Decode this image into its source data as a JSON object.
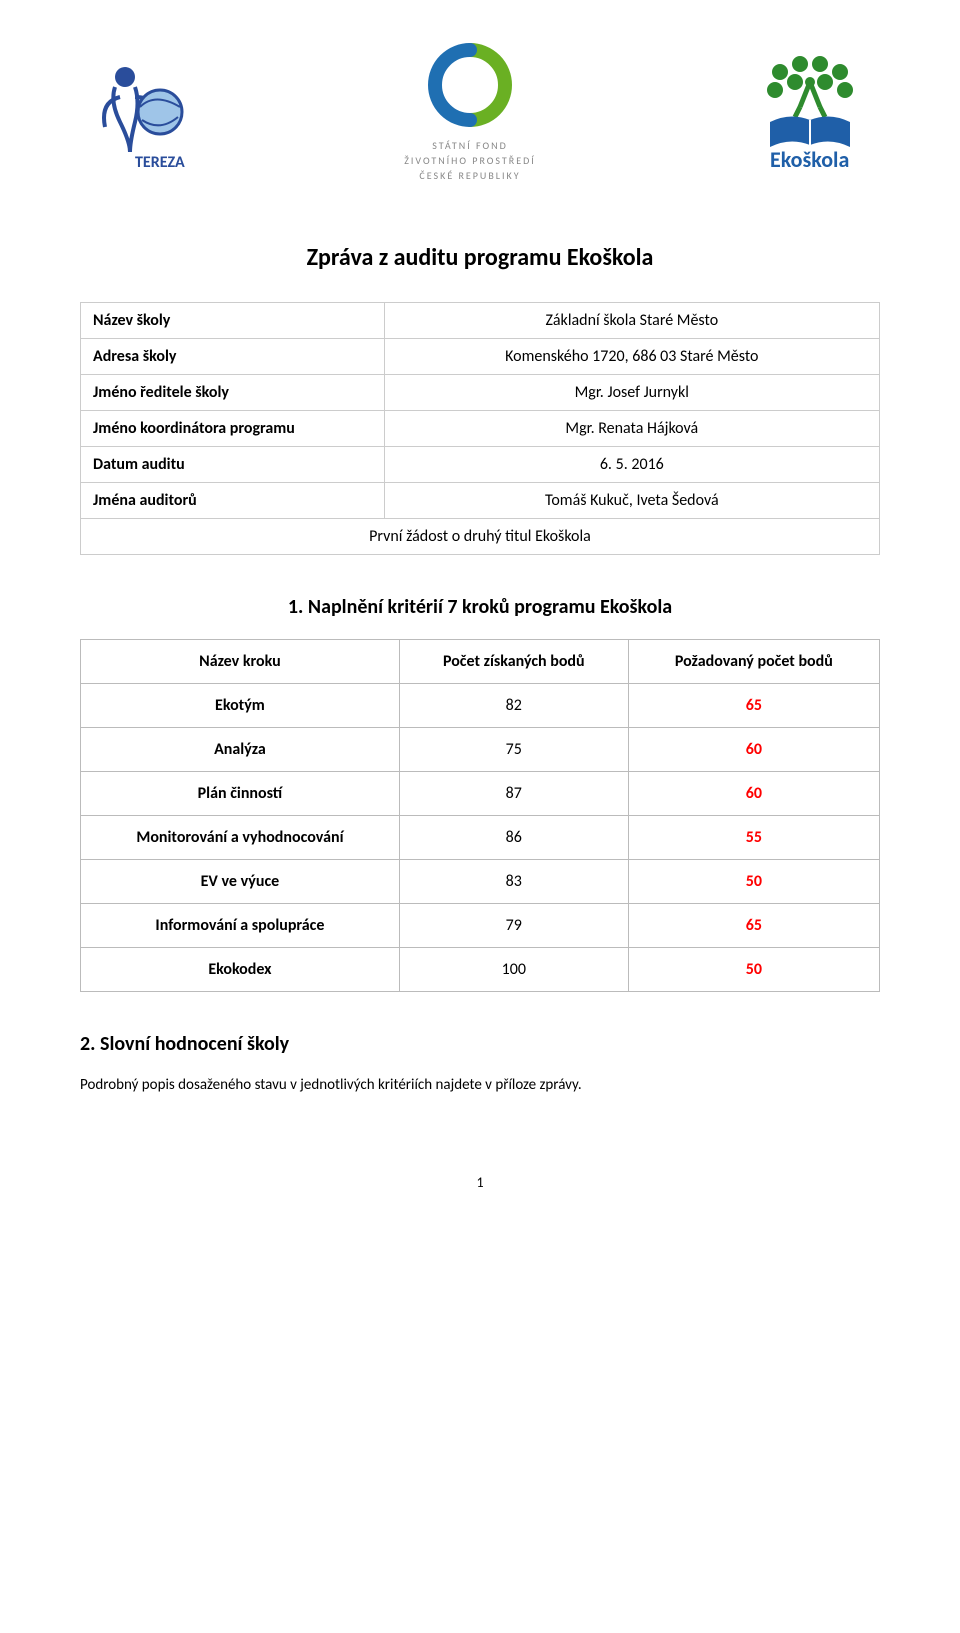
{
  "logos": {
    "tereza_label": "TEREZA",
    "sfzp_line1": "STÁTNÍ FOND",
    "sfzp_line2": "ŽIVOTNÍHO PROSTŘEDÍ",
    "sfzp_line3": "ČESKÉ REPUBLIKY",
    "ekoskola_label": "Ekoškola"
  },
  "title": "Zpráva z auditu programu Ekoškola",
  "info_table": {
    "rows": [
      {
        "label": "Název školy",
        "value": "Základní škola Staré Město"
      },
      {
        "label": "Adresa školy",
        "value": "Komenského 1720, 686 03 Staré Město"
      },
      {
        "label": "Jméno ředitele školy",
        "value": "Mgr. Josef Jurnykl"
      },
      {
        "label": "Jméno koordinátora programu",
        "value": "Mgr. Renata Hájková"
      },
      {
        "label": "Datum auditu",
        "value": "6. 5. 2016"
      },
      {
        "label": "Jména auditorů",
        "value": "Tomáš Kukuč, Iveta Šedová"
      }
    ],
    "fullrow": "První žádost o druhý titul Ekoškola"
  },
  "section1_heading": "1. Naplnění kritérií 7 kroků programu Ekoškola",
  "scores_table": {
    "columns": [
      "Název kroku",
      "Počet získaných bodů",
      "Požadovaný počet bodů"
    ],
    "rows": [
      {
        "name": "Ekotým",
        "score": "82",
        "required": "65"
      },
      {
        "name": "Analýza",
        "score": "75",
        "required": "60"
      },
      {
        "name": "Plán činností",
        "score": "87",
        "required": "60"
      },
      {
        "name": "Monitorování a vyhodnocování",
        "score": "86",
        "required": "55"
      },
      {
        "name": "EV ve výuce",
        "score": "83",
        "required": "50"
      },
      {
        "name": "Informování a spolupráce",
        "score": "79",
        "required": "65"
      },
      {
        "name": "Ekokodex",
        "score": "100",
        "required": "50"
      }
    ],
    "required_color": "#ff0000",
    "label_fontweight": "bold",
    "cell_fontsize": 16,
    "border_color": "#bbbbbb"
  },
  "section2_heading": "2. Slovní hodnocení školy",
  "footnote": "Podrobný popis dosaženého stavu v jednotlivých kritériích najdete v příloze zprávy.",
  "pagenum": "1",
  "colors": {
    "tereza_blue": "#2a4d9b",
    "sfzp_green": "#6ab023",
    "sfzp_blue": "#1f6fb2",
    "ekoskola_green": "#2e8b2e",
    "ekoskola_blue": "#1f5fa8",
    "text_gray": "#888888"
  }
}
